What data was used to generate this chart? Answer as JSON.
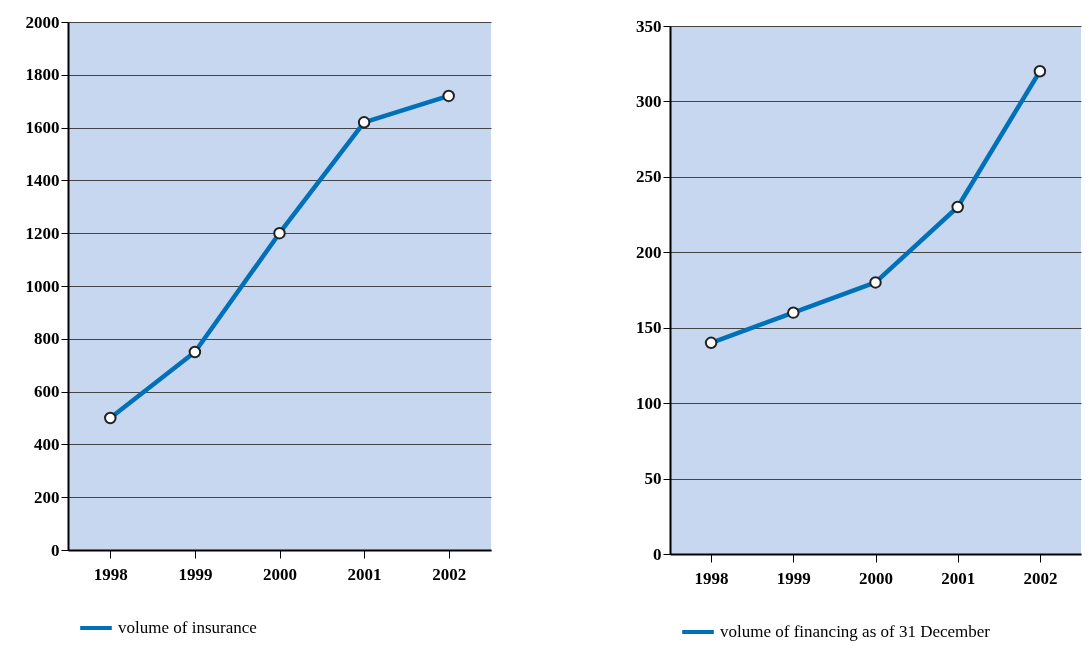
{
  "chart_data": [
    {
      "type": "line",
      "categories": [
        "1998",
        "1999",
        "2000",
        "2001",
        "2002"
      ],
      "series": [
        {
          "name": "volume of insurance",
          "color": "#0070b8",
          "values": [
            500,
            750,
            1200,
            1620,
            1720
          ]
        }
      ],
      "ylim": [
        0,
        2000
      ],
      "yticks": [
        0,
        200,
        400,
        600,
        800,
        1000,
        1200,
        1400,
        1600,
        1800,
        2000
      ],
      "grid": "y",
      "marker": "circle",
      "line_style": "solid",
      "legend": "bottom"
    },
    {
      "type": "line",
      "categories": [
        "1998",
        "1999",
        "2000",
        "2001",
        "2002"
      ],
      "series": [
        {
          "name": "volume of financing as of 31 December",
          "color": "#0070b8",
          "values": [
            140,
            160,
            180,
            230,
            320
          ]
        }
      ],
      "ylim": [
        0,
        350
      ],
      "yticks": [
        0,
        50,
        100,
        150,
        200,
        250,
        300,
        350
      ],
      "grid": "y",
      "marker": "circle",
      "line_style": "solid",
      "legend": "bottom"
    }
  ]
}
